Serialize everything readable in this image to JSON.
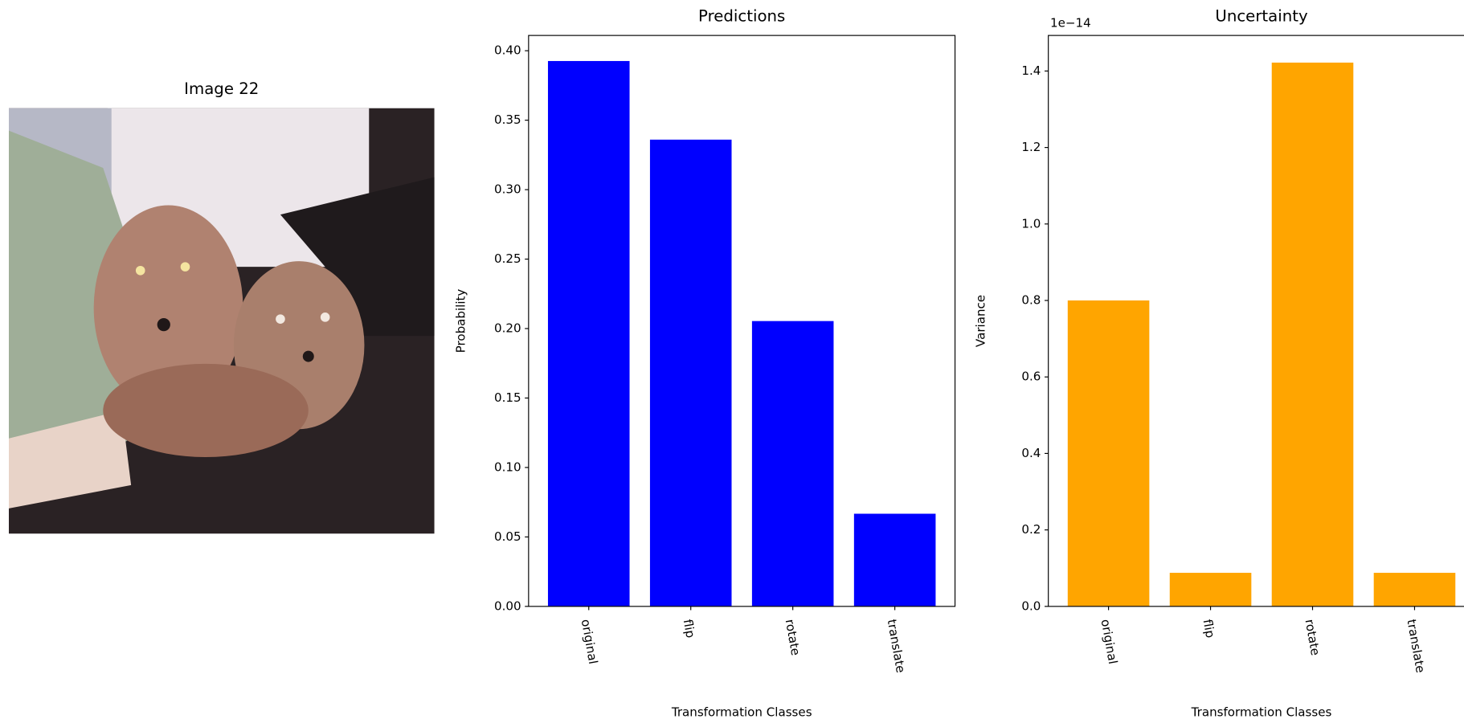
{
  "image_panel": {
    "title": "Image 22"
  },
  "chart_data": [
    {
      "type": "bar",
      "title": "Predictions",
      "x_label": "Transformation Classes",
      "y_label": "Probability",
      "categories": [
        "original",
        "flip",
        "rotate",
        "translate"
      ],
      "values": [
        0.3926,
        0.336,
        0.2054,
        0.0667
      ],
      "color": "#0000ff",
      "ylim": [
        0,
        0.411
      ],
      "yticks": [
        {
          "value": 0,
          "label": "0.00"
        },
        0.05,
        {
          "value": 0.1,
          "label": "0.10"
        },
        0.15,
        {
          "value": 0.2,
          "label": "0.20"
        },
        0.25,
        {
          "value": 0.3,
          "label": "0.30"
        },
        0.35,
        {
          "value": 0.4,
          "label": "0.40"
        }
      ]
    },
    {
      "type": "bar",
      "title": "Uncertainty",
      "x_label": "Transformation Classes",
      "y_label": "Variance",
      "offset_text": "1e−14",
      "categories": [
        "original",
        "flip",
        "rotate",
        "translate"
      ],
      "values": [
        0.8,
        0.0878,
        1.422,
        0.0878
      ],
      "color": "#ffa500",
      "ylim": [
        0,
        1.493
      ],
      "yticks": [
        {
          "value": 0,
          "label": "0.0"
        },
        0.2,
        0.4,
        0.6,
        0.8,
        {
          "value": 1,
          "label": "1.0"
        },
        1.2,
        1.4
      ]
    }
  ]
}
